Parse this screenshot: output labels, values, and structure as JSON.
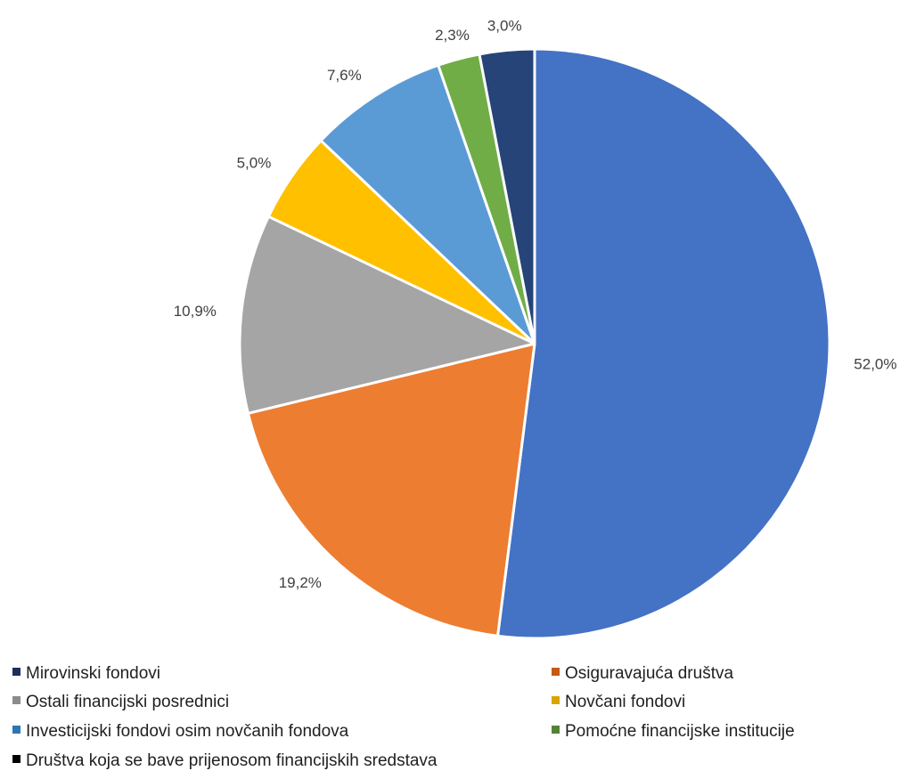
{
  "chart_data": {
    "type": "pie",
    "title": "",
    "start_angle_deg": 0,
    "direction": "clockwise",
    "legend_position": "bottom",
    "series": [
      {
        "values": [
          52.0,
          19.2,
          10.9,
          5.0,
          7.6,
          2.3,
          3.0
        ],
        "data_labels": [
          "52,0%",
          "19,2%",
          "10,9%",
          "5,0%",
          "7,6%",
          "2,3%",
          "3,0%"
        ],
        "slice_colors": [
          "#4472c4",
          "#ed7d31",
          "#a5a5a5",
          "#ffc000",
          "#5b9bd5",
          "#70ad47",
          "#264478"
        ]
      }
    ],
    "legend": [
      {
        "label": "Mirovinski fondovi",
        "color": "#1f2d5a"
      },
      {
        "label": "Osiguravajuća društva",
        "color": "#c55a11"
      },
      {
        "label": "Ostali financijski posrednici",
        "color": "#8c8c8c"
      },
      {
        "label": "Novčani fondovi",
        "color": "#d9a400"
      },
      {
        "label": "Investicijski fondovi osim novčanih fondova",
        "color": "#2e75b6"
      },
      {
        "label": "Pomoćne financijske institucije",
        "color": "#548235"
      },
      {
        "label": "Društva koja se bave prijenosom financijskih sredstava",
        "color": "#000000"
      }
    ]
  }
}
